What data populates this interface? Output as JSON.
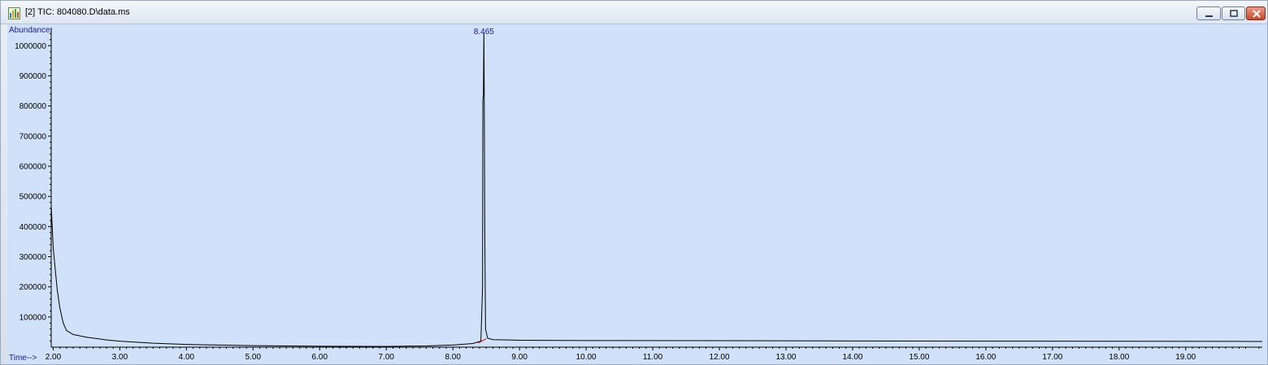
{
  "window": {
    "title": "[2] TIC: 804080.D\\data.ms",
    "icon": "chromatogram-app-icon",
    "buttons": [
      "minimize-icon",
      "maximize-icon",
      "close-icon"
    ]
  },
  "chart_data": {
    "type": "line",
    "ylabel": "Abundance",
    "xlabel": "Time-->",
    "xlim": [
      1.97,
      20.15
    ],
    "ylim": [
      0,
      1060000
    ],
    "x_ticks": [
      "2.00",
      "3.00",
      "4.00",
      "5.00",
      "6.00",
      "7.00",
      "8.00",
      "9.00",
      "10.00",
      "11.00",
      "12.00",
      "13.00",
      "14.00",
      "15.00",
      "16.00",
      "17.00",
      "18.00",
      "19.00"
    ],
    "y_ticks": [
      "100000",
      "200000",
      "300000",
      "400000",
      "500000",
      "600000",
      "700000",
      "800000",
      "900000",
      "1000000"
    ],
    "peak_label": "8.465",
    "series": [
      {
        "color": "#000000",
        "points": [
          [
            1.97,
            470000
          ],
          [
            2.0,
            330000
          ],
          [
            2.03,
            260000
          ],
          [
            2.06,
            190000
          ],
          [
            2.1,
            130000
          ],
          [
            2.15,
            80000
          ],
          [
            2.2,
            55000
          ],
          [
            2.3,
            42000
          ],
          [
            2.5,
            33000
          ],
          [
            2.8,
            24000
          ],
          [
            3.0,
            20000
          ],
          [
            3.5,
            13000
          ],
          [
            4.0,
            9000
          ],
          [
            5.0,
            5000
          ],
          [
            6.0,
            3000
          ],
          [
            7.0,
            2500
          ],
          [
            7.6,
            4000
          ],
          [
            8.0,
            7000
          ],
          [
            8.3,
            12000
          ],
          [
            8.42,
            20000
          ],
          [
            8.445,
            200000
          ],
          [
            8.45,
            820000
          ],
          [
            8.458,
            840000
          ],
          [
            8.465,
            1045000
          ],
          [
            8.47,
            860000
          ],
          [
            8.478,
            400000
          ],
          [
            8.49,
            60000
          ],
          [
            8.52,
            30000
          ],
          [
            8.6,
            25000
          ],
          [
            9.0,
            23000
          ],
          [
            10.0,
            22000
          ],
          [
            12.0,
            21500
          ],
          [
            14.0,
            20500
          ],
          [
            16.0,
            20000
          ],
          [
            18.0,
            19500
          ],
          [
            20.0,
            19000
          ],
          [
            20.15,
            19000
          ]
        ]
      }
    ],
    "baseline_color": "#cc0000",
    "label_color": "#1a1aa0"
  }
}
